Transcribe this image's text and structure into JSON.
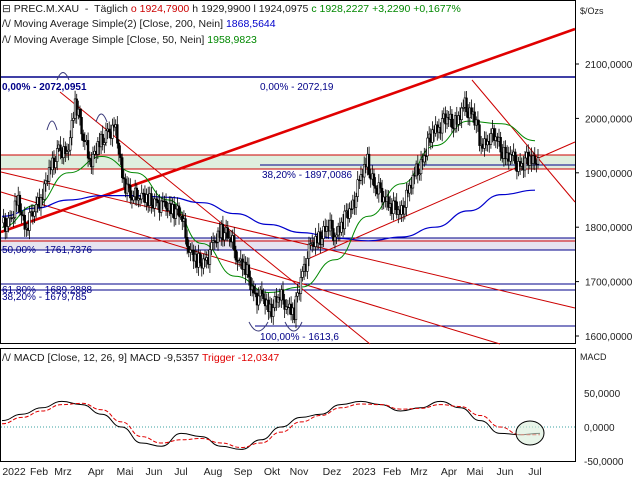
{
  "header": {
    "symbol": "PREC.M.XAU",
    "timeframe": "Täglich",
    "ohlc_o": "o 1924,7900",
    "ohlc_h": "h 1929,9900",
    "ohlc_l": "l 1924,0975",
    "ohlc_c": "c 1928,2227",
    "change_abs": "+3,2290",
    "change_pct": "+0,1677%",
    "ma1_label": "Moving Average Simple(2) [Close, 200, Nein]",
    "ma1_value": "1868,5644",
    "ma2_label": "Moving Average Simple [Close, 50, Nein]",
    "ma2_value": "1958,9823",
    "unit": "$/Ozs"
  },
  "fib_labels": {
    "a": "0,00% - 2072,19",
    "b": "38,20% - 1897,0086",
    "c": "50,00% - 1761,7376",
    "d": "61,80% - 1689,2888",
    "e": "38,20% - 1679,785",
    "f": "100,00% - 1613,6",
    "g": "0,00% - 2072,0951"
  },
  "macd": {
    "label": "MACD [Close, 12, 26, 9]",
    "macd_value": "MACD -9,5357",
    "trigger_value": "Trigger -12,0347",
    "panel_title": "MACD",
    "ticks": [
      "50,0000",
      "0,0000",
      "-50,0000"
    ]
  },
  "colors": {
    "price": "#000000",
    "ma200": "#0000cc",
    "ma50": "#008800",
    "trend_main": "#e00000",
    "trend_thin": "#cc0000",
    "macd_line": "#000000",
    "trigger_line": "#e00000",
    "zone_fill": "#d9ecd9",
    "zone_fill2": "#e8e8f4"
  },
  "chart_data": {
    "type": "candlestick",
    "ylabel": "$/Ozs",
    "ylim": [
      1580,
      2160
    ],
    "yticks": [
      1600,
      1700,
      1800,
      1900,
      2000,
      2100
    ],
    "ytick_labels": [
      "1600,0000",
      "1700,0000",
      "1800,0000",
      "1900,0000",
      "2000,0000",
      "2100,0000"
    ],
    "x_labels": [
      "2022",
      "Feb",
      "Mrz",
      "Apr",
      "Mai",
      "Jun",
      "Jul",
      "Aug",
      "Sep",
      "Okt",
      "Nov",
      "Dez",
      "2023",
      "Feb",
      "Mrz",
      "Apr",
      "Mai",
      "Jun",
      "Jul"
    ],
    "price_close_weekly": [
      1800,
      1815,
      1840,
      1805,
      1830,
      1870,
      1900,
      1950,
      1920,
      2040,
      1960,
      1930,
      1945,
      1980,
      1970,
      1890,
      1850,
      1870,
      1840,
      1850,
      1830,
      1840,
      1820,
      1770,
      1730,
      1740,
      1760,
      1800,
      1780,
      1750,
      1720,
      1680,
      1665,
      1650,
      1670,
      1665,
      1640,
      1720,
      1760,
      1780,
      1800,
      1790,
      1810,
      1835,
      1880,
      1920,
      1870,
      1860,
      1840,
      1825,
      1860,
      1900,
      1930,
      1980,
      1990,
      2000,
      1990,
      2020,
      2010,
      1950,
      1970,
      1960,
      1930,
      1920,
      1915,
      1925,
      1928
    ],
    "ma200": [
      1820,
      1835,
      1850,
      1858,
      1858,
      1855,
      1845,
      1825,
      1805,
      1790,
      1780,
      1775,
      1782,
      1800,
      1830,
      1860,
      1868
    ],
    "ma50": [
      1800,
      1840,
      1900,
      1930,
      1900,
      1850,
      1770,
      1710,
      1680,
      1690,
      1740,
      1820,
      1880,
      1950,
      1995,
      1990,
      1959
    ],
    "horizontal_levels": [
      2072.19,
      1897.01,
      1761.74,
      1689.29,
      1679.79,
      1613.6
    ],
    "macd_range": [
      -70,
      80
    ],
    "macd": [
      10,
      20,
      30,
      40,
      35,
      20,
      0,
      -25,
      -30,
      -10,
      -15,
      -30,
      -35,
      -20,
      0,
      15,
      20,
      35,
      40,
      35,
      25,
      30,
      40,
      30,
      10,
      -10,
      -12,
      -10
    ],
    "trigger": [
      5,
      15,
      25,
      35,
      37,
      27,
      8,
      -15,
      -25,
      -20,
      -18,
      -25,
      -32,
      -25,
      -8,
      8,
      18,
      30,
      36,
      35,
      28,
      29,
      35,
      32,
      18,
      0,
      -12,
      -12
    ]
  }
}
